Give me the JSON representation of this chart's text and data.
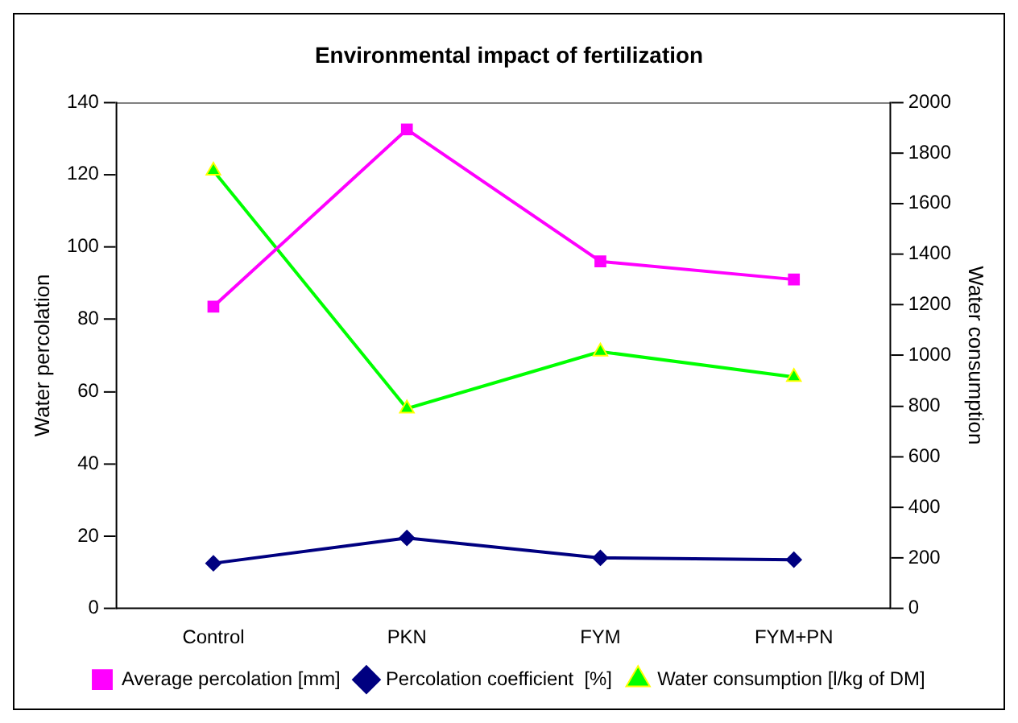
{
  "chart_data": {
    "type": "line",
    "title": "Environmental impact of fertilization",
    "ylabel": "Water percolation",
    "y2label": "Water consumption",
    "categories": [
      "Control",
      "PKN",
      "FYM",
      "FYM+PN"
    ],
    "series": [
      {
        "name": "Average percolation [mm]",
        "color": "#ff00ff",
        "marker": "square",
        "values": [
          83.5,
          132.5,
          96,
          91
        ]
      },
      {
        "name": "Percolation coefficient  [%]",
        "color": "#000080",
        "marker": "diamond",
        "values": [
          12.5,
          19.5,
          14,
          13.5
        ]
      },
      {
        "name": "Water consumption [l/kg of DM]",
        "color": "#00ff00",
        "marker": "triangle",
        "axis": "y2",
        "values": [
          1730,
          790,
          1015,
          915
        ]
      }
    ],
    "ylim": [
      0,
      140
    ],
    "yticks": [
      0,
      20,
      40,
      60,
      80,
      100,
      120,
      140
    ],
    "y2lim": [
      0,
      2000
    ],
    "y2ticks": [
      0,
      200,
      400,
      600,
      800,
      1000,
      1200,
      1400,
      1600,
      1800,
      2000
    ],
    "grid": false,
    "legend": "bottom",
    "line_style": "solid"
  }
}
